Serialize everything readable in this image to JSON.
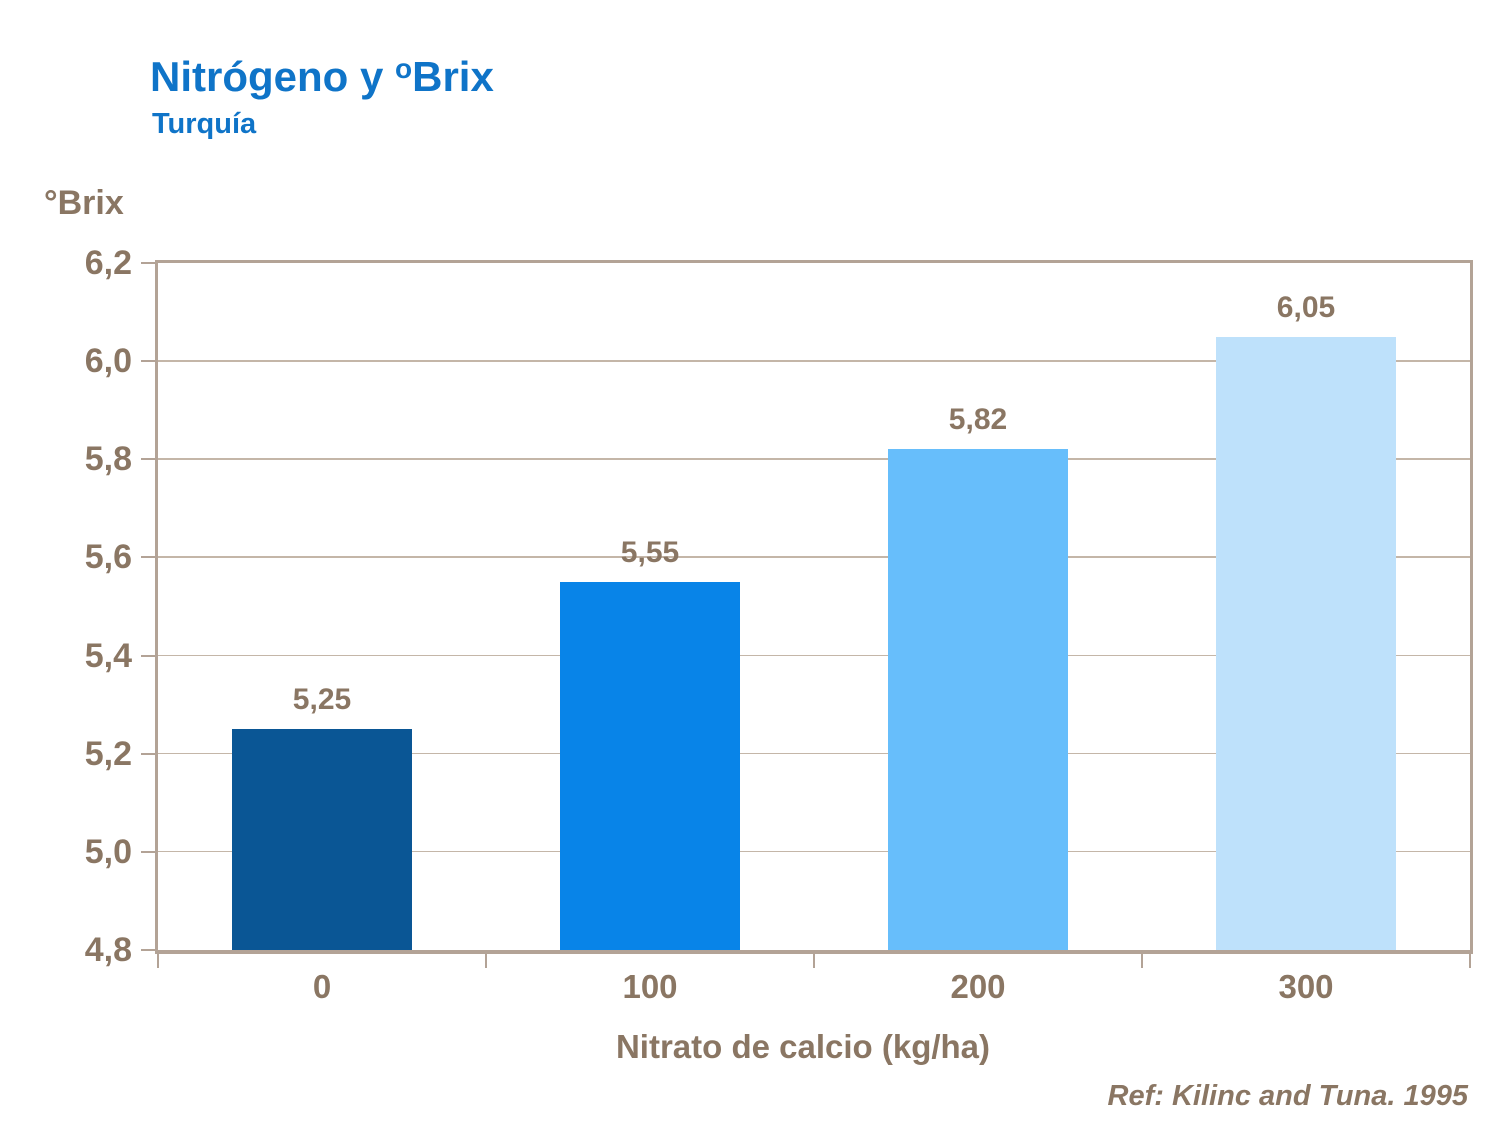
{
  "header": {
    "title_prefix": "Nitrógeno y ",
    "title_sup": "o",
    "title_main": "Brix",
    "subtitle": "Turquía"
  },
  "footer": {
    "reference": "Ref: Kilinc and Tuna. 1995"
  },
  "colors": {
    "title_blue": "#0F74C8",
    "text_brown": "#8A7663",
    "axis_tan": "#B3A396",
    "gridline_tan": "#C4B6A8"
  },
  "chart_data": {
    "type": "bar",
    "title": "Nitrógeno y ºBrix",
    "subtitle": "Turquía",
    "ylabel": "°Brix",
    "xlabel": "Nitrato de calcio (kg/ha)",
    "categories": [
      "0",
      "100",
      "200",
      "300"
    ],
    "values": [
      5.25,
      5.55,
      5.82,
      6.05
    ],
    "value_labels": [
      "5,25",
      "5,55",
      "5,82",
      "6,05"
    ],
    "bar_colors": [
      "#0A5695",
      "#0884E8",
      "#67BEFB",
      "#BEE1FB"
    ],
    "ylim": [
      4.8,
      6.2
    ],
    "y_ticks": [
      {
        "value": 4.8,
        "label": "4,8"
      },
      {
        "value": 5.0,
        "label": "5,0"
      },
      {
        "value": 5.2,
        "label": "5,2"
      },
      {
        "value": 5.4,
        "label": "5,4"
      },
      {
        "value": 5.6,
        "label": "5,6"
      },
      {
        "value": 5.8,
        "label": "5,8"
      },
      {
        "value": 6.0,
        "label": "6,0"
      },
      {
        "value": 6.2,
        "label": "6,2"
      }
    ],
    "grid": "horizontal",
    "legend": "none"
  }
}
